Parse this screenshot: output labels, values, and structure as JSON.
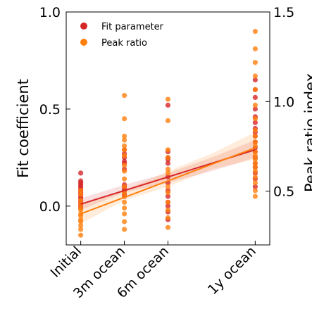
{
  "chart_data": {
    "type": "scatter",
    "title": "",
    "ylabel": "Fit coefficient",
    "y2label": "Peak ratio index",
    "ylim": [
      -0.2,
      1.0
    ],
    "y2lim": [
      0.2,
      1.5
    ],
    "categories": [
      "Initial",
      "3m ocean",
      "6m ocean",
      "1y ocean"
    ],
    "category_x": [
      0,
      3,
      6,
      12
    ],
    "yticks": [
      "1.0",
      "0.5",
      "0.0"
    ],
    "y2ticks": [
      "1.5",
      "1.0",
      "0.5"
    ],
    "y2ticks_values": [
      1.5,
      1.0,
      0.5
    ],
    "legend": {
      "position": "top-left",
      "entries": [
        "Fit parameter",
        "Peak ratio"
      ]
    },
    "series": [
      {
        "name": "Fit parameter",
        "axis": "left",
        "color": "#d62728",
        "points": [
          [
            0,
            0.17
          ],
          [
            0,
            0.13
          ],
          [
            0,
            0.12
          ],
          [
            0,
            0.11
          ],
          [
            0,
            0.1
          ],
          [
            0,
            0.09
          ],
          [
            0,
            0.08
          ],
          [
            0,
            0.07
          ],
          [
            0,
            0.06
          ],
          [
            0,
            0.05
          ],
          [
            0,
            0.04
          ],
          [
            0,
            0.03
          ],
          [
            0,
            0.02
          ],
          [
            0,
            0.01
          ],
          [
            0,
            0.0
          ],
          [
            0,
            -0.01
          ],
          [
            3,
            0.29
          ],
          [
            3,
            0.27
          ],
          [
            3,
            0.25
          ],
          [
            3,
            0.23
          ],
          [
            3,
            0.22
          ],
          [
            3,
            0.19
          ],
          [
            3,
            0.11
          ],
          [
            3,
            0.1
          ],
          [
            3,
            0.09
          ],
          [
            3,
            0.08
          ],
          [
            3,
            0.06
          ],
          [
            3,
            0.05
          ],
          [
            6,
            0.52
          ],
          [
            6,
            0.28
          ],
          [
            6,
            0.25
          ],
          [
            6,
            0.24
          ],
          [
            6,
            0.22
          ],
          [
            6,
            0.15
          ],
          [
            6,
            0.12
          ],
          [
            6,
            0.08
          ],
          [
            6,
            0.05
          ],
          [
            6,
            0.02
          ],
          [
            6,
            0.0
          ],
          [
            6,
            -0.03
          ],
          [
            6,
            -0.07
          ],
          [
            12,
            0.65
          ],
          [
            12,
            0.6
          ],
          [
            12,
            0.56
          ],
          [
            12,
            0.5
          ],
          [
            12,
            0.46
          ],
          [
            12,
            0.43
          ],
          [
            12,
            0.4
          ],
          [
            12,
            0.38
          ],
          [
            12,
            0.36
          ],
          [
            12,
            0.33
          ],
          [
            12,
            0.3
          ],
          [
            12,
            0.28
          ],
          [
            12,
            0.25
          ],
          [
            12,
            0.22
          ],
          [
            12,
            0.2
          ],
          [
            12,
            0.17
          ],
          [
            12,
            0.14
          ],
          [
            12,
            0.1
          ]
        ],
        "fit": {
          "x": [
            0,
            12
          ],
          "y": [
            0.01,
            0.29
          ]
        },
        "ci": {
          "x": [
            0,
            3,
            6,
            9,
            12
          ],
          "lower": [
            -0.02,
            0.07,
            0.12,
            0.18,
            0.25
          ],
          "upper": [
            0.04,
            0.11,
            0.17,
            0.25,
            0.34
          ]
        }
      },
      {
        "name": "Peak ratio",
        "axis": "left",
        "color": "#ff7f0e",
        "points": [
          [
            0,
            0.08
          ],
          [
            0,
            0.06
          ],
          [
            0,
            0.03
          ],
          [
            0,
            0.01
          ],
          [
            0,
            -0.01
          ],
          [
            0,
            -0.02
          ],
          [
            0,
            -0.04
          ],
          [
            0,
            -0.05
          ],
          [
            0,
            -0.07
          ],
          [
            0,
            -0.08
          ],
          [
            0,
            -0.1
          ],
          [
            0,
            -0.12
          ],
          [
            0,
            -0.15
          ],
          [
            3,
            0.57
          ],
          [
            3,
            0.45
          ],
          [
            3,
            0.36
          ],
          [
            3,
            0.34
          ],
          [
            3,
            0.31
          ],
          [
            3,
            0.29
          ],
          [
            3,
            0.26
          ],
          [
            3,
            0.21
          ],
          [
            3,
            0.18
          ],
          [
            3,
            0.14
          ],
          [
            3,
            0.1
          ],
          [
            3,
            0.07
          ],
          [
            3,
            0.05
          ],
          [
            3,
            0.02
          ],
          [
            3,
            -0.01
          ],
          [
            3,
            -0.04
          ],
          [
            3,
            -0.08
          ],
          [
            3,
            -0.12
          ],
          [
            6,
            0.55
          ],
          [
            6,
            0.44
          ],
          [
            6,
            0.29
          ],
          [
            6,
            0.25
          ],
          [
            6,
            0.19
          ],
          [
            6,
            0.17
          ],
          [
            6,
            0.1
          ],
          [
            6,
            0.07
          ],
          [
            6,
            0.02
          ],
          [
            6,
            -0.02
          ],
          [
            6,
            -0.06
          ],
          [
            6,
            -0.11
          ],
          [
            12,
            0.9
          ],
          [
            12,
            0.81
          ],
          [
            12,
            0.74
          ],
          [
            12,
            0.67
          ],
          [
            12,
            0.6
          ],
          [
            12,
            0.52
          ],
          [
            12,
            0.45
          ],
          [
            12,
            0.39
          ],
          [
            12,
            0.36
          ],
          [
            12,
            0.33
          ],
          [
            12,
            0.31
          ],
          [
            12,
            0.28
          ],
          [
            12,
            0.26
          ],
          [
            12,
            0.24
          ],
          [
            12,
            0.22
          ],
          [
            12,
            0.2
          ],
          [
            12,
            0.18
          ],
          [
            12,
            0.15
          ],
          [
            12,
            0.12
          ],
          [
            12,
            0.08
          ],
          [
            12,
            0.05
          ]
        ],
        "fit": {
          "x": [
            0,
            12
          ],
          "y": [
            -0.04,
            0.3
          ]
        },
        "ci": {
          "x": [
            0,
            3,
            6,
            9,
            12
          ],
          "lower": [
            -0.09,
            0.03,
            0.1,
            0.19,
            0.24
          ],
          "upper": [
            0.01,
            0.08,
            0.18,
            0.27,
            0.38
          ]
        }
      }
    ]
  }
}
